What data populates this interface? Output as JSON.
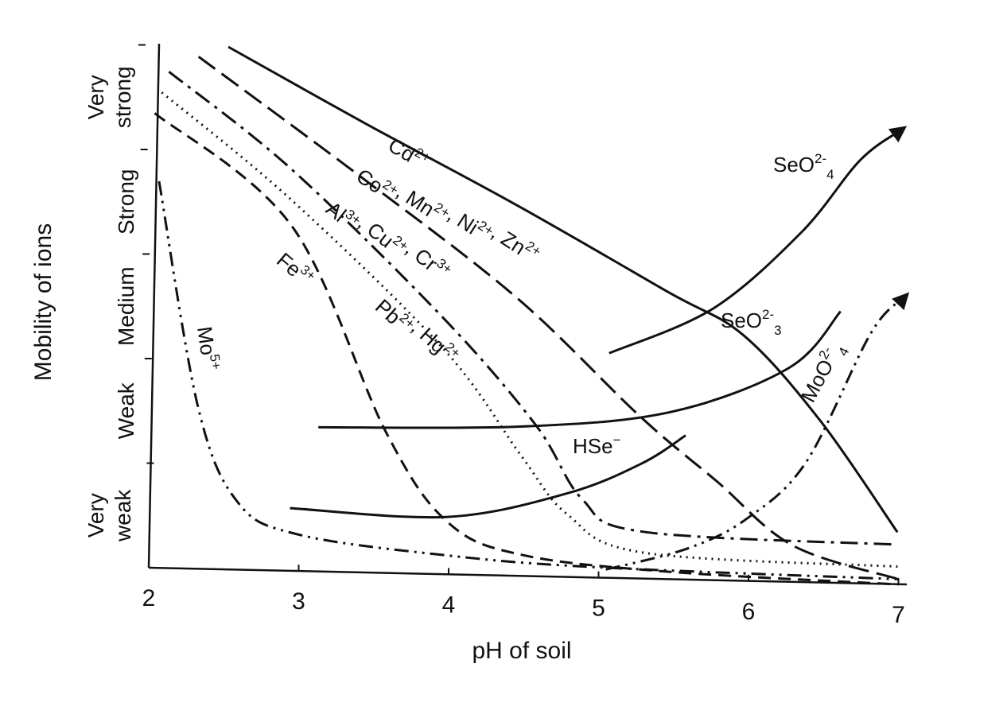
{
  "chart_data": {
    "type": "line",
    "xlabel": "pH of soil",
    "ylabel": "Mobility of ions",
    "xlim": [
      2,
      7
    ],
    "ylim": [
      0,
      5
    ],
    "x_ticks": [
      "2",
      "3",
      "4",
      "5",
      "6",
      "7"
    ],
    "y_levels": [
      {
        "line1": "Very",
        "line2": "weak",
        "y": 0.5
      },
      {
        "line1": "Weak",
        "line2": "",
        "y": 1.5
      },
      {
        "line1": "Medium",
        "line2": "",
        "y": 2.5
      },
      {
        "line1": "Strong",
        "line2": "",
        "y": 3.5
      },
      {
        "line1": "Very",
        "line2": "strong",
        "y": 4.5
      }
    ],
    "grid": false,
    "series": [
      {
        "key": "cd",
        "style": "solid",
        "label": "Cd",
        "sup": "2+",
        "points": [
          [
            2.6,
            5.0
          ],
          [
            3.5,
            4.3
          ],
          [
            4.5,
            3.55
          ],
          [
            5.5,
            2.75
          ],
          [
            6.0,
            2.35
          ],
          [
            6.5,
            1.55
          ],
          [
            7.0,
            0.5
          ]
        ]
      },
      {
        "key": "co",
        "style": "longdash",
        "label": "Co",
        "sup": "2+",
        "label2": ", Mn",
        "sup2": "2+",
        "label3": ", Ni",
        "sup3": "2+",
        "label4": ", Zn",
        "sup4": "2+",
        "points": [
          [
            2.4,
            4.9
          ],
          [
            3.5,
            3.75
          ],
          [
            4.5,
            2.65
          ],
          [
            5.3,
            1.55
          ],
          [
            5.8,
            0.95
          ],
          [
            6.3,
            0.35
          ],
          [
            7.0,
            0.05
          ]
        ]
      },
      {
        "key": "al",
        "style": "dashdot",
        "label": "Al",
        "sup": "3+",
        "label2": ", Cu",
        "sup2": "2+",
        "label3": ", Cr",
        "sup3": "3+",
        "points": [
          [
            2.2,
            4.75
          ],
          [
            3.0,
            3.85
          ],
          [
            4.0,
            2.45
          ],
          [
            4.6,
            1.45
          ],
          [
            4.9,
            0.75
          ],
          [
            5.3,
            0.45
          ],
          [
            7.0,
            0.38
          ]
        ]
      },
      {
        "key": "pb",
        "style": "dotted",
        "label": "Pb",
        "sup": "2+",
        "label2": ", Hg",
        "sup2": "2+",
        "points": [
          [
            2.15,
            4.55
          ],
          [
            3.0,
            3.55
          ],
          [
            4.0,
            2.15
          ],
          [
            4.5,
            1.15
          ],
          [
            4.8,
            0.6
          ],
          [
            5.3,
            0.25
          ],
          [
            7.0,
            0.17
          ]
        ]
      },
      {
        "key": "fe",
        "style": "dashed",
        "label": "Fe",
        "sup": "3+",
        "points": [
          [
            2.1,
            4.35
          ],
          [
            3.0,
            3.3
          ],
          [
            3.6,
            1.35
          ],
          [
            4.0,
            0.5
          ],
          [
            4.5,
            0.2
          ],
          [
            5.5,
            0.07
          ],
          [
            7.0,
            0.0
          ]
        ]
      },
      {
        "key": "mo5",
        "style": "dashdotdot",
        "label": "Mo",
        "sup": "5+",
        "points": [
          [
            2.12,
            3.7
          ],
          [
            2.35,
            1.55
          ],
          [
            2.6,
            0.65
          ],
          [
            3.0,
            0.35
          ],
          [
            4.0,
            0.18
          ],
          [
            5.0,
            0.1
          ],
          [
            7.0,
            0.05
          ]
        ]
      },
      {
        "key": "seo4",
        "style": "solid",
        "label": "SeO",
        "sup": "2-",
        "sub": "4",
        "arrow": true,
        "points": [
          [
            5.1,
            2.15
          ],
          [
            5.8,
            2.6
          ],
          [
            6.4,
            3.35
          ],
          [
            6.8,
            4.05
          ],
          [
            7.08,
            4.35
          ]
        ]
      },
      {
        "key": "seo3",
        "style": "solid",
        "label": "SeO",
        "sup": "2-",
        "sub": "3",
        "points": [
          [
            3.15,
            1.38
          ],
          [
            4.5,
            1.43
          ],
          [
            5.5,
            1.6
          ],
          [
            6.3,
            2.05
          ],
          [
            6.65,
            2.6
          ]
        ]
      },
      {
        "key": "hse",
        "style": "solid",
        "label": "HSe",
        "sup": "−",
        "points": [
          [
            2.95,
            0.6
          ],
          [
            4.0,
            0.55
          ],
          [
            4.8,
            0.8
          ],
          [
            5.3,
            1.1
          ],
          [
            5.6,
            1.38
          ]
        ]
      },
      {
        "key": "moo4",
        "style": "dashdotdot",
        "label": "MoO",
        "sup": "2-",
        "sub": "4",
        "arrow": true,
        "points": [
          [
            5.05,
            0.08
          ],
          [
            5.6,
            0.3
          ],
          [
            6.0,
            0.6
          ],
          [
            6.4,
            1.15
          ],
          [
            6.85,
            2.4
          ],
          [
            7.08,
            2.75
          ]
        ]
      }
    ]
  }
}
